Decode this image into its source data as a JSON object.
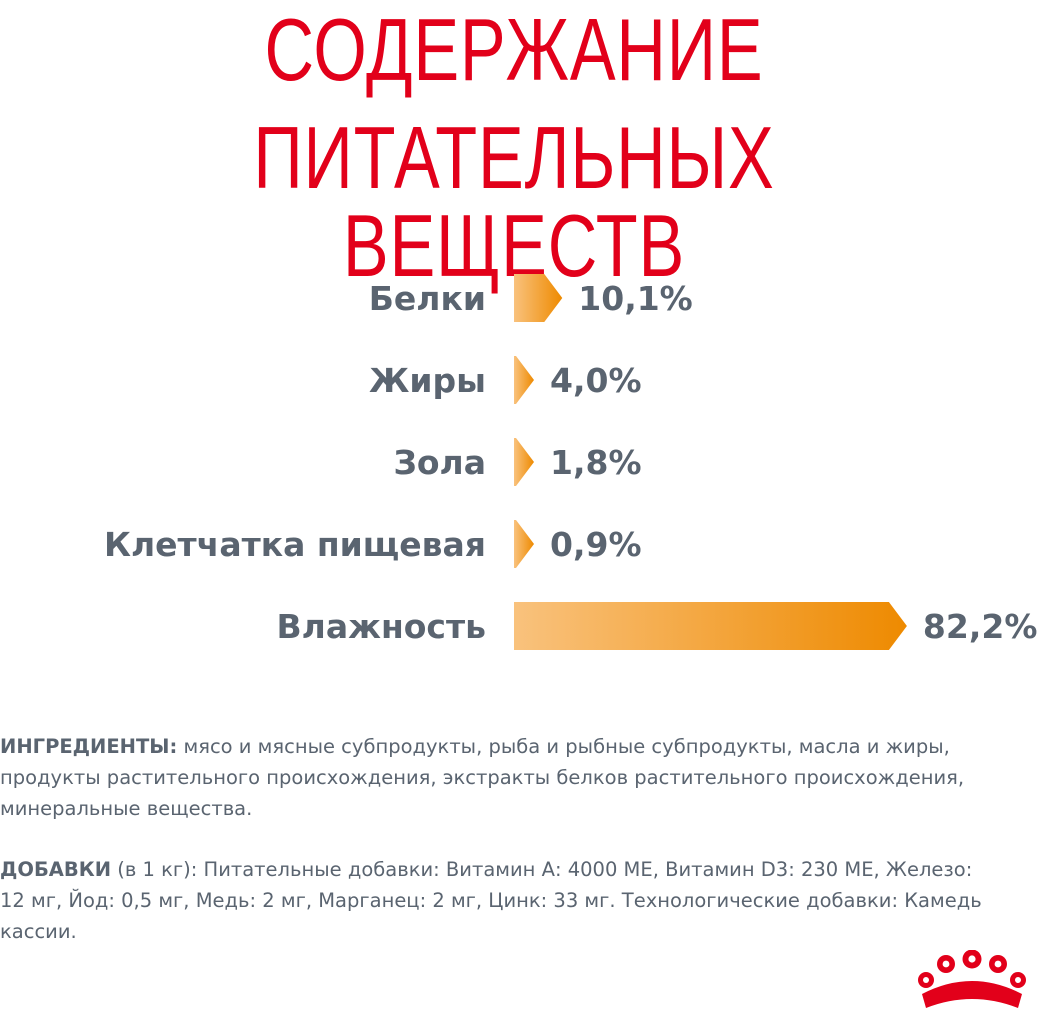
{
  "header": {
    "title_line1": "СОДЕРЖАНИЕ",
    "title_line2": "ПИТАТЕЛЬНЫХ ВЕЩЕСТВ"
  },
  "chart_data": {
    "type": "bar",
    "orientation": "horizontal",
    "categories": [
      "Белки",
      "Жиры",
      "Зола",
      "Клетчатка пищевая",
      "Влажность"
    ],
    "values": [
      10.1,
      4.0,
      1.8,
      0.9,
      82.2
    ],
    "value_labels": [
      "10,1%",
      "4,0%",
      "1,8%",
      "0,9%",
      "82,2%"
    ],
    "unit": "%",
    "xlim": [
      0,
      100
    ],
    "grid": false,
    "legend": "none",
    "colors": {
      "bar_start": "#f9c27d",
      "bar_end": "#ee8a00",
      "label": "#5a6470"
    }
  },
  "ingredients": {
    "label": "ИНГРЕДИЕНТЫ:",
    "text": " мясо и мясные субпродукты, рыба и рыбные субпродукты, масла и жиры, продукты растительного происхождения, экстракты белков растительного происхождения, минеральные вещества."
  },
  "additives": {
    "label": "ДОБАВКИ",
    "text": " (в 1 кг): Питательные добавки: Витамин А: 4000 МЕ, Витамин D3: 230 МЕ, Железо: 12 мг, Йод: 0,5 мг, Медь: 2 мг, Марганец: 2 мг, Цинк: 33 мг. Технологические добавки: Камедь кассии."
  },
  "logo": {
    "icon": "royal-canin-crown-icon",
    "color": "#e2001a"
  }
}
